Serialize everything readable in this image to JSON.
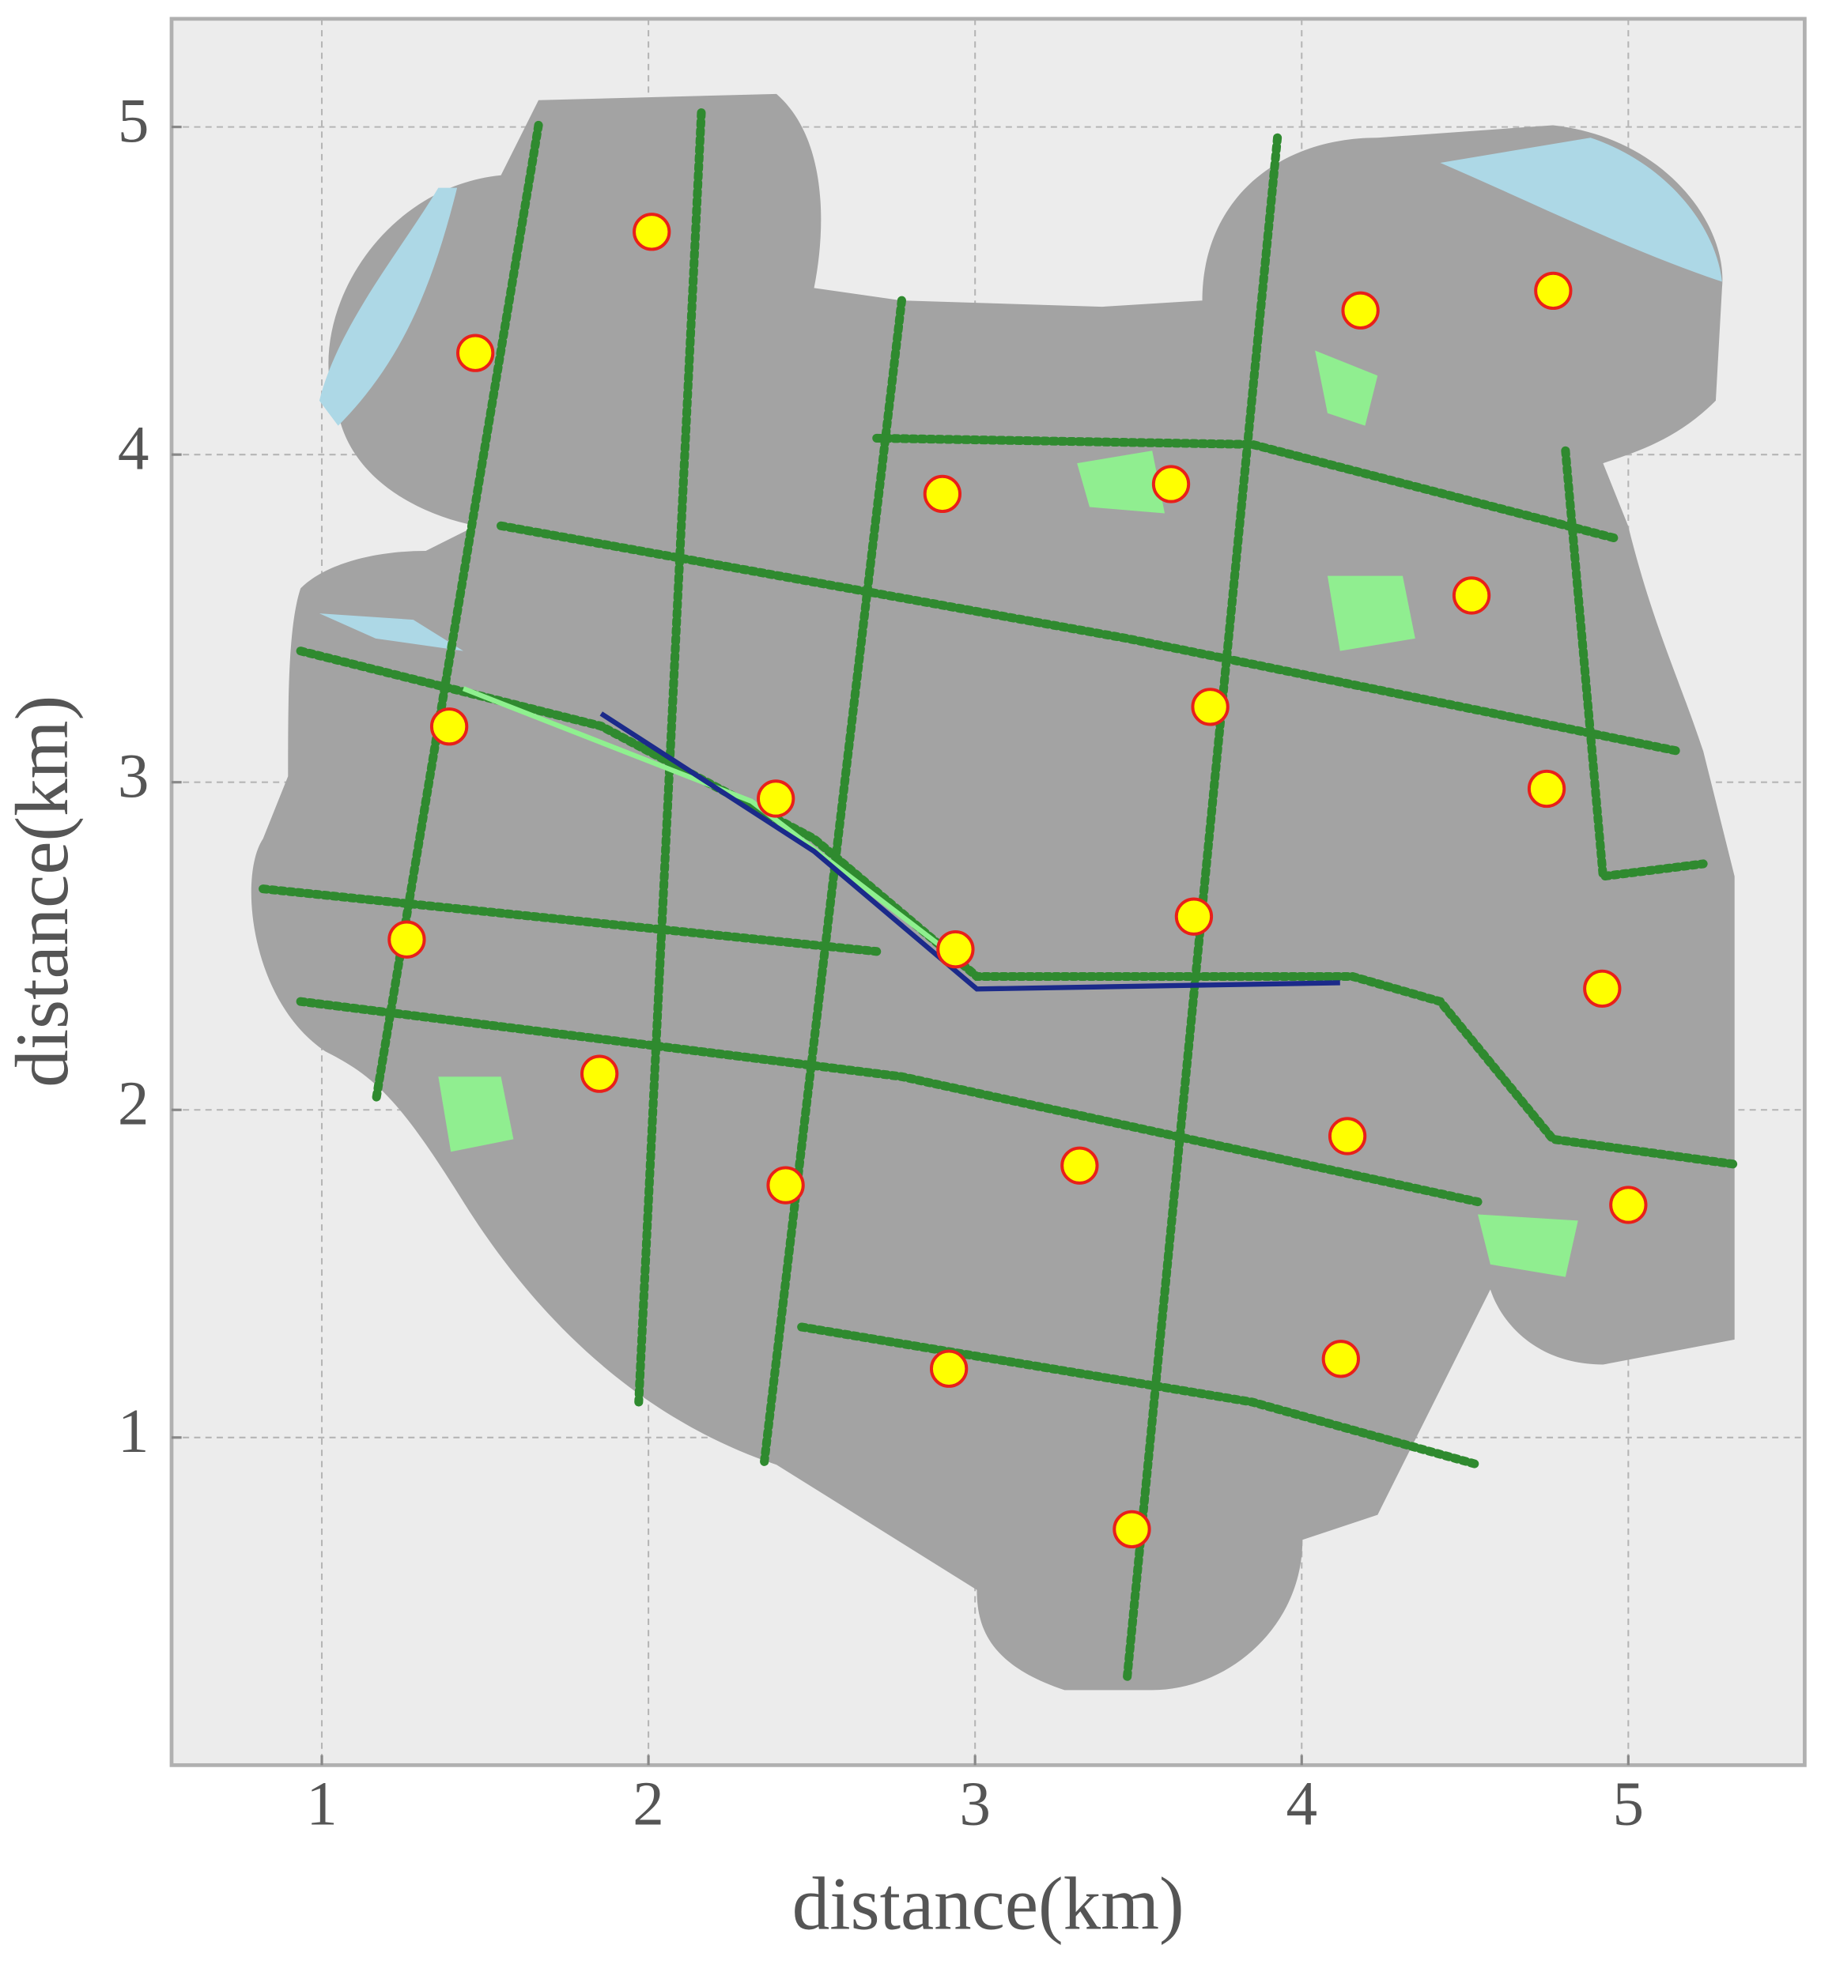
{
  "chart_data": {
    "type": "scatter",
    "x_label": "distance(km)",
    "y_label": "distance(km)",
    "xlim": [
      0.54,
      5.54
    ],
    "ylim": [
      0.0,
      5.33
    ],
    "xticks": [
      1,
      2,
      3,
      4,
      5
    ],
    "yticks": [
      1,
      2,
      3,
      4,
      5
    ],
    "grid": true,
    "color": "#ffff00",
    "edgecolor": "#e8201a",
    "x": [
      2.01,
      1.47,
      4.18,
      4.77,
      2.9,
      3.6,
      4.52,
      3.72,
      1.39,
      2.39,
      4.75,
      3.67,
      2.94,
      4.92,
      1.26,
      1.85,
      4.14,
      3.32,
      2.42,
      5.0,
      2.92,
      4.12,
      3.48
    ],
    "values": [
      4.68,
      4.31,
      4.44,
      4.5,
      3.88,
      3.91,
      3.57,
      3.23,
      3.17,
      2.95,
      2.98,
      2.59,
      2.49,
      2.37,
      2.52,
      2.11,
      1.92,
      1.83,
      1.77,
      1.71,
      1.21,
      1.24,
      0.72
    ]
  }
}
